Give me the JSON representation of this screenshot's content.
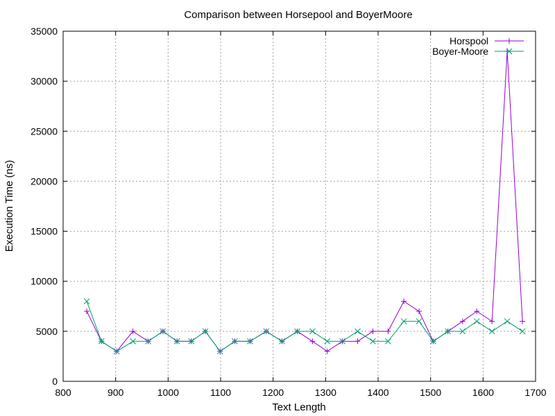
{
  "chart_data": {
    "type": "line",
    "title": "Comparison between Horsepool and BoyerMoore",
    "xlabel": "Text Length",
    "ylabel": "Execution Time (ns)",
    "xlim": [
      800,
      1700
    ],
    "ylim": [
      0,
      35000
    ],
    "xticks": [
      800,
      900,
      1000,
      1100,
      1200,
      1300,
      1400,
      1500,
      1600,
      1700
    ],
    "yticks": [
      0,
      5000,
      10000,
      15000,
      20000,
      25000,
      30000,
      35000
    ],
    "grid": true,
    "legend_position": "top-right",
    "x": [
      845,
      873,
      902,
      933,
      962,
      990,
      1017,
      1044,
      1071,
      1099,
      1127,
      1156,
      1187,
      1217,
      1246,
      1275,
      1303,
      1332,
      1361,
      1390,
      1419,
      1449,
      1478,
      1505,
      1533,
      1561,
      1588,
      1617,
      1646,
      1675
    ],
    "series": [
      {
        "name": "Horspool",
        "color": "#9400d3",
        "marker": "plus",
        "values": [
          7000,
          4000,
          3000,
          5000,
          4000,
          5000,
          4000,
          4000,
          5000,
          3000,
          4000,
          4000,
          5000,
          4000,
          5000,
          4000,
          3000,
          4000,
          4000,
          5000,
          5000,
          8000,
          7000,
          4000,
          5000,
          6000,
          7000,
          6000,
          33000,
          6000
        ]
      },
      {
        "name": "Boyer-Moore",
        "color": "#009e73",
        "marker": "cross",
        "values": [
          8000,
          4000,
          3000,
          4000,
          4000,
          5000,
          4000,
          4000,
          5000,
          3000,
          4000,
          4000,
          5000,
          4000,
          5000,
          5000,
          4000,
          4000,
          5000,
          4000,
          4000,
          6000,
          6000,
          4000,
          5000,
          5000,
          6000,
          5000,
          6000,
          5000
        ]
      }
    ]
  }
}
